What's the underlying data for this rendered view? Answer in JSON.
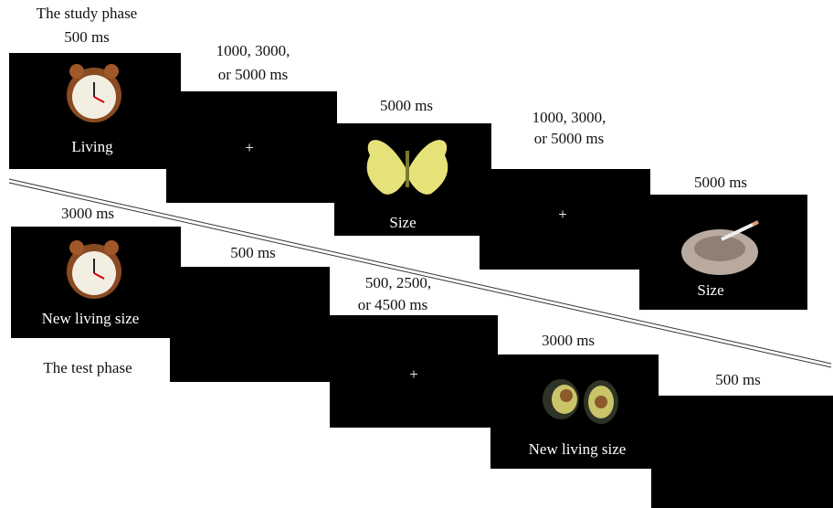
{
  "study_phase": {
    "title": "The study phase",
    "frames": [
      {
        "duration": [
          "500 ms"
        ],
        "caption": "Living"
      },
      {
        "duration": [
          "1000, 3000,",
          "or 5000 ms"
        ],
        "caption": "+"
      },
      {
        "duration": [
          "5000 ms"
        ],
        "caption": "Size"
      },
      {
        "duration": [
          "1000, 3000,",
          "or 5000 ms"
        ],
        "caption": "+"
      },
      {
        "duration": [
          "5000 ms"
        ],
        "caption": "Size"
      }
    ]
  },
  "test_phase": {
    "title": "The test phase",
    "frames": [
      {
        "duration": [
          "3000 ms"
        ],
        "caption": "New living size"
      },
      {
        "duration": [
          "500 ms"
        ]
      },
      {
        "duration": [
          "500, 2500,",
          "or 4500 ms"
        ],
        "caption": "+"
      },
      {
        "duration": [
          "3000 ms"
        ],
        "caption": "New living size"
      },
      {
        "duration": [
          "500 ms"
        ]
      }
    ]
  }
}
